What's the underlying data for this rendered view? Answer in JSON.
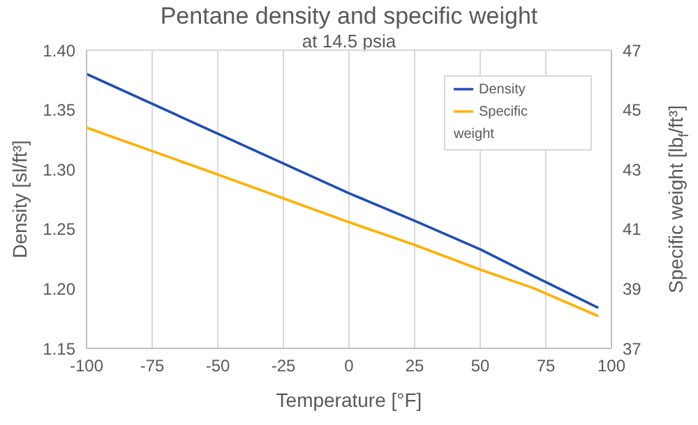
{
  "chart_data": {
    "type": "line",
    "title": "Pentane density and specific weight",
    "subtitle": "at 14.5 psia",
    "xlabel": "Temperature [°F]",
    "ylabel": "Density [sl/ft³]",
    "y2label": "Specific weight [lb$_{f}$/ft³]",
    "x": [
      -100,
      -50,
      0,
      25,
      50,
      70,
      95
    ],
    "series": [
      {
        "name": "Density",
        "color": "#1f4eb4",
        "values": [
          1.38,
          1.33,
          1.28,
          1.257,
          1.233,
          1.211,
          1.184
        ]
      },
      {
        "name": "Specific weight",
        "color": "#ffb000",
        "axis": "y2",
        "values": [
          44.4,
          42.83,
          41.23,
          40.47,
          39.64,
          39.03,
          38.08
        ]
      }
    ],
    "xlim": [
      -100,
      100
    ],
    "xticks": [
      -100,
      -75,
      -50,
      -25,
      0,
      25,
      50,
      75,
      100
    ],
    "ylim": [
      1.15,
      1.4
    ],
    "yticks": [
      {
        "value": 1.15,
        "label": "1.15"
      },
      {
        "value": 1.2,
        "label": "1.20"
      },
      {
        "value": 1.25,
        "label": "1.25"
      },
      {
        "value": 1.3,
        "label": "1.30"
      },
      {
        "value": 1.35,
        "label": "1.35"
      },
      {
        "value": 1.4,
        "label": "1.40"
      }
    ],
    "y2lim": [
      37,
      47
    ],
    "y2ticks": [
      37,
      39,
      41,
      43,
      45,
      47
    ],
    "grid": true,
    "legend": "top right",
    "marker": "none",
    "line_style": "solid"
  }
}
